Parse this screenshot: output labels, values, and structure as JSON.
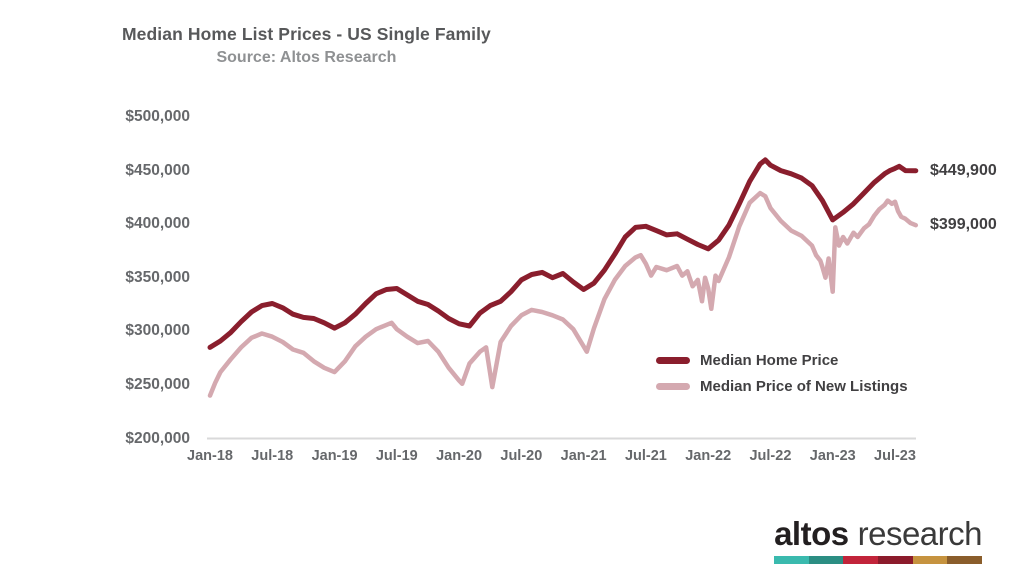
{
  "chart_data": {
    "type": "line",
    "title": "Median Home List Prices - US Single Family",
    "subtitle": "Source: Altos Research",
    "x_unit": "months since Jan-2018, weekly data",
    "y_unit": "USD thousands",
    "ylim": [
      200,
      500
    ],
    "xlim_months": [
      0,
      68
    ],
    "grid": false,
    "legend_position": "inside-bottom-right",
    "y_ticks": [
      {
        "value": 500,
        "label": "$500,000"
      },
      {
        "value": 450,
        "label": "$450,000"
      },
      {
        "value": 400,
        "label": "$400,000"
      },
      {
        "value": 350,
        "label": "$350,000"
      },
      {
        "value": 300,
        "label": "$300,000"
      },
      {
        "value": 250,
        "label": "$250,000"
      },
      {
        "value": 200,
        "label": "$200,000"
      }
    ],
    "x_ticks": [
      {
        "m": 0,
        "label": "Jan-18"
      },
      {
        "m": 6,
        "label": "Jul-18"
      },
      {
        "m": 12,
        "label": "Jan-19"
      },
      {
        "m": 18,
        "label": "Jul-19"
      },
      {
        "m": 24,
        "label": "Jan-20"
      },
      {
        "m": 30,
        "label": "Jul-20"
      },
      {
        "m": 36,
        "label": "Jan-21"
      },
      {
        "m": 42,
        "label": "Jul-21"
      },
      {
        "m": 48,
        "label": "Jan-22"
      },
      {
        "m": 54,
        "label": "Jul-22"
      },
      {
        "m": 60,
        "label": "Jan-23"
      },
      {
        "m": 66,
        "label": "Jul-23"
      }
    ],
    "series": [
      {
        "name": "Median Home Price",
        "slug": "median-home-price",
        "color": "#8A1E2D",
        "end_label": "$449,900",
        "end_value": 449.9,
        "points": [
          [
            0,
            285
          ],
          [
            1,
            291
          ],
          [
            2,
            299
          ],
          [
            3,
            309
          ],
          [
            4,
            318
          ],
          [
            5,
            324
          ],
          [
            6,
            326
          ],
          [
            7,
            322
          ],
          [
            8,
            316
          ],
          [
            9,
            313
          ],
          [
            10,
            312
          ],
          [
            11,
            308
          ],
          [
            12,
            303
          ],
          [
            13,
            308
          ],
          [
            14,
            316
          ],
          [
            15,
            326
          ],
          [
            16,
            335
          ],
          [
            17,
            339
          ],
          [
            18,
            340
          ],
          [
            19,
            334
          ],
          [
            20,
            328
          ],
          [
            21,
            325
          ],
          [
            22,
            319
          ],
          [
            23,
            312
          ],
          [
            24,
            307
          ],
          [
            25,
            305
          ],
          [
            26,
            317
          ],
          [
            27,
            324
          ],
          [
            28,
            328
          ],
          [
            29,
            337
          ],
          [
            30,
            348
          ],
          [
            31,
            353
          ],
          [
            32,
            355
          ],
          [
            33,
            350
          ],
          [
            34,
            354
          ],
          [
            35,
            346
          ],
          [
            36,
            339
          ],
          [
            37,
            345
          ],
          [
            38,
            357
          ],
          [
            39,
            372
          ],
          [
            40,
            388
          ],
          [
            41,
            397
          ],
          [
            42,
            398
          ],
          [
            43,
            394
          ],
          [
            44,
            390
          ],
          [
            45,
            391
          ],
          [
            46,
            386
          ],
          [
            47,
            381
          ],
          [
            48,
            377
          ],
          [
            49,
            385
          ],
          [
            50,
            399
          ],
          [
            51,
            419
          ],
          [
            52,
            440
          ],
          [
            53,
            456
          ],
          [
            53.5,
            460
          ],
          [
            54,
            455
          ],
          [
            55,
            450
          ],
          [
            56,
            447
          ],
          [
            57,
            443
          ],
          [
            58,
            436
          ],
          [
            59,
            422
          ],
          [
            60,
            404
          ],
          [
            61,
            411
          ],
          [
            62,
            419
          ],
          [
            63,
            429
          ],
          [
            64,
            439
          ],
          [
            65,
            447
          ],
          [
            65.5,
            450
          ],
          [
            66,
            452
          ],
          [
            66.4,
            454
          ],
          [
            67,
            450
          ],
          [
            68,
            449.9
          ]
        ]
      },
      {
        "name": "Median Price of New Listings",
        "slug": "median-price-of-new-listings",
        "color": "#D4A9B0",
        "end_label": "$399,000",
        "end_value": 399,
        "points": [
          [
            0,
            240
          ],
          [
            0.5,
            252
          ],
          [
            1,
            262
          ],
          [
            2,
            274
          ],
          [
            3,
            285
          ],
          [
            4,
            294
          ],
          [
            5,
            298
          ],
          [
            6,
            295
          ],
          [
            7,
            290
          ],
          [
            8,
            283
          ],
          [
            9,
            280
          ],
          [
            10,
            272
          ],
          [
            11,
            266
          ],
          [
            12,
            262
          ],
          [
            13,
            272
          ],
          [
            14,
            286
          ],
          [
            15,
            295
          ],
          [
            16,
            302
          ],
          [
            17,
            306
          ],
          [
            17.5,
            308
          ],
          [
            18,
            302
          ],
          [
            19,
            295
          ],
          [
            20,
            289
          ],
          [
            21,
            291
          ],
          [
            22,
            281
          ],
          [
            23,
            266
          ],
          [
            24,
            254
          ],
          [
            24.3,
            251
          ],
          [
            25,
            270
          ],
          [
            26,
            281
          ],
          [
            26.6,
            285
          ],
          [
            27.2,
            248
          ],
          [
            28,
            290
          ],
          [
            29,
            305
          ],
          [
            30,
            315
          ],
          [
            31,
            320
          ],
          [
            32,
            318
          ],
          [
            33,
            315
          ],
          [
            34,
            311
          ],
          [
            35,
            302
          ],
          [
            36,
            286
          ],
          [
            36.3,
            281
          ],
          [
            37,
            303
          ],
          [
            38,
            330
          ],
          [
            39,
            348
          ],
          [
            40,
            361
          ],
          [
            41,
            369
          ],
          [
            41.5,
            371
          ],
          [
            42,
            363
          ],
          [
            42.5,
            352
          ],
          [
            43,
            360
          ],
          [
            44,
            357
          ],
          [
            45,
            361
          ],
          [
            45.5,
            352
          ],
          [
            46,
            356
          ],
          [
            46.5,
            342
          ],
          [
            47,
            348
          ],
          [
            47.4,
            328
          ],
          [
            47.7,
            350
          ],
          [
            48,
            340
          ],
          [
            48.3,
            321
          ],
          [
            48.7,
            352
          ],
          [
            49,
            347
          ],
          [
            50,
            369
          ],
          [
            51,
            398
          ],
          [
            52,
            420
          ],
          [
            53,
            429
          ],
          [
            53.5,
            426
          ],
          [
            54,
            415
          ],
          [
            55,
            403
          ],
          [
            56,
            394
          ],
          [
            57,
            389
          ],
          [
            58,
            380
          ],
          [
            58.4,
            371
          ],
          [
            58.8,
            366
          ],
          [
            59,
            360
          ],
          [
            59.3,
            350
          ],
          [
            59.6,
            368
          ],
          [
            60,
            337
          ],
          [
            60.25,
            397
          ],
          [
            60.6,
            380
          ],
          [
            61,
            388
          ],
          [
            61.4,
            382
          ],
          [
            62,
            392
          ],
          [
            62.4,
            388
          ],
          [
            63,
            396
          ],
          [
            63.5,
            400
          ],
          [
            64,
            408
          ],
          [
            64.5,
            414
          ],
          [
            65,
            418
          ],
          [
            65.3,
            422
          ],
          [
            65.7,
            419
          ],
          [
            66,
            421
          ],
          [
            66.3,
            412
          ],
          [
            66.6,
            407
          ],
          [
            67,
            405
          ],
          [
            67.5,
            401
          ],
          [
            68,
            399
          ]
        ]
      }
    ]
  },
  "logo": {
    "altos": "altos",
    "research": "research",
    "bar_colors": [
      "#3ABAAE",
      "#2B8E83",
      "#C2243A",
      "#8C1B2B",
      "#C6933F",
      "#8A5D2B"
    ]
  }
}
